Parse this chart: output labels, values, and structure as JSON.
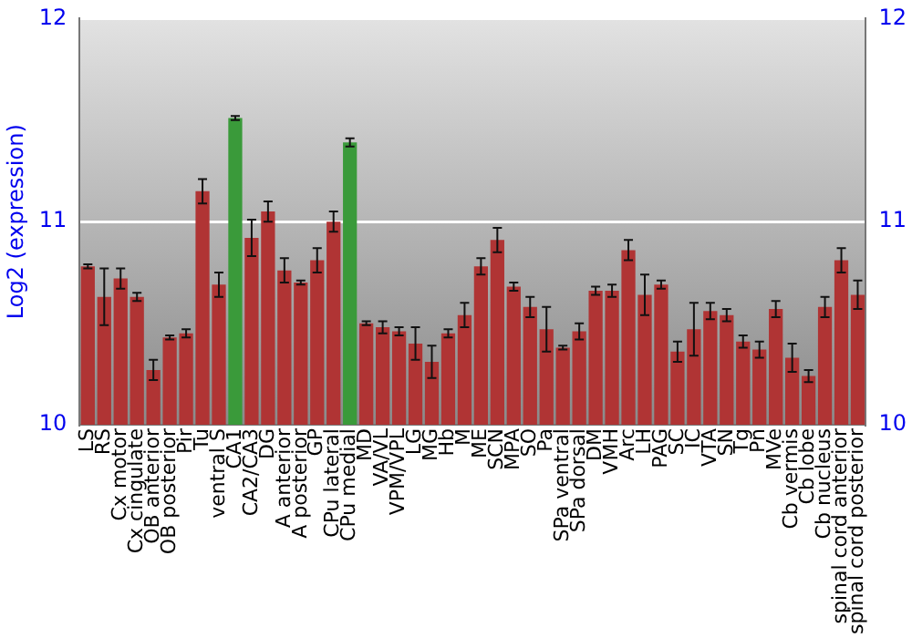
{
  "chart_data": {
    "type": "bar",
    "ylabel": "Log2 (expression)",
    "categories": [
      "LS",
      "RS",
      "Cx motor",
      "Cx cingulate",
      "OB anterior",
      "OB posterior",
      "Pir",
      "Tu",
      "ventral S",
      "CA1",
      "CA2/CA3",
      "DG",
      "A anterior",
      "A posterior",
      "GP",
      "CPu lateral",
      "CPu medial",
      "MD",
      "VA/VL",
      "VPM/VPL",
      "LG",
      "MG",
      "Hb",
      "M",
      "ME",
      "SCN",
      "MPA",
      "SO",
      "Pa",
      "SPa ventral",
      "SPa dorsal",
      "DM",
      "VMH",
      "Arc",
      "LH",
      "PAG",
      "SC",
      "IC",
      "VTA",
      "SN",
      "Tg",
      "Pn",
      "MVe",
      "Cb vermis",
      "Cb lobe",
      "Cb nucleus",
      "spinal cord anterior",
      "spinal cord posterior"
    ],
    "values": [
      10.78,
      10.63,
      10.72,
      10.63,
      10.27,
      10.43,
      10.45,
      11.15,
      10.69,
      11.51,
      10.92,
      11.05,
      10.76,
      10.7,
      10.81,
      11.0,
      11.39,
      10.5,
      10.48,
      10.46,
      10.4,
      10.31,
      10.45,
      10.54,
      10.78,
      10.91,
      10.68,
      10.58,
      10.47,
      10.38,
      10.46,
      10.66,
      10.66,
      10.86,
      10.64,
      10.69,
      10.36,
      10.47,
      10.56,
      10.54,
      10.41,
      10.37,
      10.57,
      10.33,
      10.24,
      10.58,
      10.81,
      10.64
    ],
    "errors": [
      0.01,
      0.14,
      0.05,
      0.02,
      0.05,
      0.01,
      0.02,
      0.06,
      0.06,
      0.01,
      0.09,
      0.05,
      0.06,
      0.01,
      0.06,
      0.05,
      0.02,
      0.01,
      0.03,
      0.02,
      0.08,
      0.08,
      0.02,
      0.06,
      0.04,
      0.06,
      0.02,
      0.05,
      0.11,
      0.01,
      0.04,
      0.02,
      0.03,
      0.05,
      0.1,
      0.02,
      0.05,
      0.13,
      0.04,
      0.03,
      0.03,
      0.04,
      0.04,
      0.07,
      0.03,
      0.05,
      0.06,
      0.07
    ],
    "colors": [
      "#b03434",
      "#b03434",
      "#b03434",
      "#b03434",
      "#b03434",
      "#b03434",
      "#b03434",
      "#b03434",
      "#b03434",
      "#3a9a3a",
      "#b03434",
      "#b03434",
      "#b03434",
      "#b03434",
      "#b03434",
      "#b03434",
      "#3a9a3a",
      "#b03434",
      "#b03434",
      "#b03434",
      "#b03434",
      "#b03434",
      "#b03434",
      "#b03434",
      "#b03434",
      "#b03434",
      "#b03434",
      "#b03434",
      "#b03434",
      "#b03434",
      "#b03434",
      "#b03434",
      "#b03434",
      "#b03434",
      "#b03434",
      "#b03434",
      "#b03434",
      "#b03434",
      "#b03434",
      "#b03434",
      "#b03434",
      "#b03434",
      "#b03434",
      "#b03434",
      "#b03434",
      "#b03434",
      "#b03434",
      "#b03434"
    ],
    "ylim": [
      10,
      12
    ],
    "yticks": [
      10,
      11,
      12
    ],
    "y2lim": [
      10,
      12
    ],
    "y2ticks": [
      10,
      11,
      12
    ],
    "grid": "y",
    "legend": false
  }
}
